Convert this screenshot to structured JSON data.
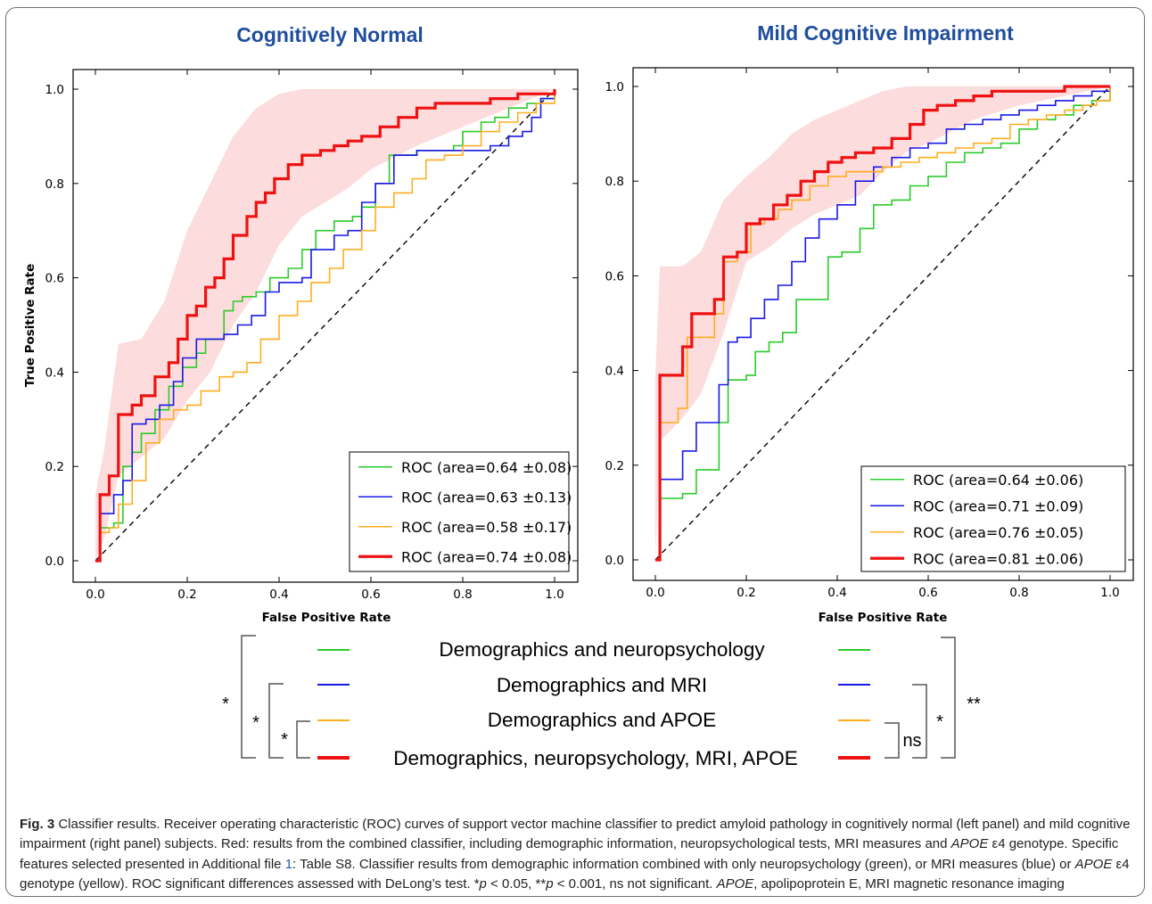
{
  "colors": {
    "green": "#2bcb2b",
    "blue": "#1919e6",
    "orange": "#ffad1f",
    "red": "#ef1111",
    "band": "#fbd0d0",
    "title": "#1f4e9e"
  },
  "chart_data": [
    {
      "type": "line",
      "title": "Cognitively Normal",
      "xlabel": "False Positive Rate",
      "ylabel": "True Positive Rate",
      "xlim": [
        0,
        1
      ],
      "ylim": [
        0,
        1
      ],
      "xticks": [
        "0.0",
        "0.2",
        "0.4",
        "0.6",
        "0.8",
        "1.0"
      ],
      "yticks": [
        "0.0",
        "0.2",
        "0.4",
        "0.6",
        "0.8",
        "1.0"
      ],
      "legend_position": "lower-right",
      "diagonal": "dashed",
      "series": [
        {
          "name": "ROC (area=0.64 ±0.08)",
          "color": "green",
          "x": [
            0,
            0.01,
            0.04,
            0.06,
            0.08,
            0.1,
            0.13,
            0.16,
            0.19,
            0.22,
            0.24,
            0.28,
            0.3,
            0.32,
            0.35,
            0.38,
            0.42,
            0.45,
            0.48,
            0.52,
            0.56,
            0.58,
            0.61,
            0.64,
            0.67,
            0.7,
            0.74,
            0.78,
            0.8,
            0.84,
            0.87,
            0.9,
            0.94,
            0.97,
            1.0
          ],
          "y": [
            0,
            0.07,
            0.08,
            0.2,
            0.23,
            0.27,
            0.32,
            0.37,
            0.41,
            0.44,
            0.47,
            0.53,
            0.55,
            0.56,
            0.57,
            0.6,
            0.62,
            0.66,
            0.7,
            0.72,
            0.73,
            0.75,
            0.8,
            0.86,
            0.86,
            0.87,
            0.87,
            0.88,
            0.91,
            0.93,
            0.94,
            0.96,
            0.97,
            0.98,
            1.0
          ]
        },
        {
          "name": "ROC (area=0.63 ±0.13)",
          "color": "blue",
          "x": [
            0,
            0.01,
            0.04,
            0.06,
            0.08,
            0.11,
            0.14,
            0.17,
            0.19,
            0.22,
            0.25,
            0.28,
            0.31,
            0.34,
            0.37,
            0.4,
            0.45,
            0.47,
            0.52,
            0.55,
            0.58,
            0.61,
            0.65,
            0.7,
            0.78,
            0.82,
            0.86,
            0.9,
            0.93,
            0.95,
            0.97,
            1.0
          ],
          "y": [
            0,
            0.1,
            0.14,
            0.17,
            0.29,
            0.3,
            0.33,
            0.38,
            0.43,
            0.47,
            0.47,
            0.48,
            0.5,
            0.52,
            0.57,
            0.59,
            0.6,
            0.66,
            0.69,
            0.7,
            0.76,
            0.8,
            0.86,
            0.87,
            0.87,
            0.87,
            0.88,
            0.9,
            0.91,
            0.94,
            0.98,
            1.0
          ]
        },
        {
          "name": "ROC (area=0.58 ±0.17)",
          "color": "orange",
          "x": [
            0,
            0.01,
            0.03,
            0.05,
            0.08,
            0.11,
            0.14,
            0.17,
            0.2,
            0.23,
            0.27,
            0.3,
            0.33,
            0.36,
            0.4,
            0.44,
            0.47,
            0.51,
            0.54,
            0.58,
            0.61,
            0.65,
            0.69,
            0.72,
            0.76,
            0.8,
            0.84,
            0.88,
            0.92,
            0.96,
            1.0
          ],
          "y": [
            0,
            0.06,
            0.07,
            0.12,
            0.17,
            0.25,
            0.3,
            0.32,
            0.33,
            0.36,
            0.39,
            0.4,
            0.42,
            0.47,
            0.52,
            0.55,
            0.59,
            0.62,
            0.66,
            0.7,
            0.75,
            0.78,
            0.81,
            0.85,
            0.86,
            0.88,
            0.91,
            0.93,
            0.95,
            0.97,
            1.0
          ]
        },
        {
          "name": "ROC (area=0.74 ±0.08)",
          "color": "red",
          "x": [
            0,
            0.01,
            0.03,
            0.05,
            0.08,
            0.1,
            0.13,
            0.16,
            0.18,
            0.2,
            0.22,
            0.24,
            0.26,
            0.28,
            0.3,
            0.33,
            0.35,
            0.37,
            0.39,
            0.42,
            0.45,
            0.49,
            0.52,
            0.55,
            0.58,
            0.62,
            0.66,
            0.7,
            0.74,
            0.78,
            0.82,
            0.86,
            0.89,
            0.92,
            0.95,
            0.98,
            1.0
          ],
          "y": [
            0,
            0.14,
            0.18,
            0.31,
            0.33,
            0.35,
            0.39,
            0.42,
            0.47,
            0.52,
            0.54,
            0.58,
            0.6,
            0.64,
            0.69,
            0.73,
            0.76,
            0.78,
            0.81,
            0.84,
            0.86,
            0.87,
            0.88,
            0.89,
            0.9,
            0.92,
            0.94,
            0.96,
            0.97,
            0.97,
            0.97,
            0.98,
            0.98,
            0.99,
            0.99,
            0.99,
            1.0
          ]
        }
      ],
      "band": {
        "series": "red",
        "x": [
          0,
          0.02,
          0.05,
          0.1,
          0.15,
          0.2,
          0.25,
          0.3,
          0.35,
          0.4,
          0.45,
          0.5,
          0.55,
          0.6,
          0.7,
          0.8,
          0.9,
          1.0
        ],
        "upper": [
          0.14,
          0.24,
          0.46,
          0.47,
          0.55,
          0.7,
          0.8,
          0.9,
          0.96,
          0.99,
          1.0,
          1.0,
          1.0,
          1.0,
          1.0,
          1.0,
          1.0,
          1.0
        ],
        "lower": [
          0.0,
          0.05,
          0.18,
          0.22,
          0.26,
          0.34,
          0.4,
          0.5,
          0.57,
          0.67,
          0.73,
          0.76,
          0.79,
          0.83,
          0.88,
          0.92,
          0.96,
          1.0
        ]
      }
    },
    {
      "type": "line",
      "title": "Mild Cognitive Impairment",
      "xlabel": "False Positive Rate",
      "ylabel": "",
      "xlim": [
        0,
        1
      ],
      "ylim": [
        0,
        1
      ],
      "xticks": [
        "0.0",
        "0.2",
        "0.4",
        "0.6",
        "0.8",
        "1.0"
      ],
      "yticks": [
        "0.0",
        "0.2",
        "0.4",
        "0.6",
        "0.8",
        "1.0"
      ],
      "legend_position": "lower-right",
      "diagonal": "dashed",
      "series": [
        {
          "name": "ROC (area=0.64 ±0.06)",
          "color": "green",
          "x": [
            0,
            0.01,
            0.03,
            0.06,
            0.09,
            0.12,
            0.14,
            0.16,
            0.2,
            0.22,
            0.25,
            0.28,
            0.31,
            0.35,
            0.38,
            0.41,
            0.45,
            0.48,
            0.52,
            0.56,
            0.6,
            0.64,
            0.68,
            0.72,
            0.76,
            0.8,
            0.84,
            0.88,
            0.92,
            0.96,
            1.0
          ],
          "y": [
            0,
            0.13,
            0.13,
            0.14,
            0.19,
            0.19,
            0.29,
            0.38,
            0.39,
            0.44,
            0.46,
            0.48,
            0.55,
            0.55,
            0.64,
            0.65,
            0.7,
            0.75,
            0.76,
            0.79,
            0.81,
            0.84,
            0.86,
            0.87,
            0.88,
            0.91,
            0.93,
            0.94,
            0.96,
            0.97,
            1.0
          ]
        },
        {
          "name": "ROC (area=0.71 ±0.09)",
          "color": "blue",
          "x": [
            0,
            0.01,
            0.03,
            0.06,
            0.09,
            0.11,
            0.14,
            0.16,
            0.18,
            0.21,
            0.24,
            0.27,
            0.3,
            0.33,
            0.36,
            0.4,
            0.44,
            0.48,
            0.52,
            0.56,
            0.6,
            0.64,
            0.68,
            0.72,
            0.76,
            0.8,
            0.84,
            0.88,
            0.92,
            0.96,
            1.0
          ],
          "y": [
            0,
            0.17,
            0.17,
            0.23,
            0.29,
            0.29,
            0.37,
            0.46,
            0.47,
            0.51,
            0.55,
            0.58,
            0.63,
            0.68,
            0.72,
            0.75,
            0.8,
            0.83,
            0.85,
            0.87,
            0.88,
            0.91,
            0.92,
            0.93,
            0.94,
            0.95,
            0.96,
            0.97,
            0.98,
            0.99,
            1.0
          ]
        },
        {
          "name": "ROC (area=0.76 ±0.05)",
          "color": "orange",
          "x": [
            0,
            0.01,
            0.03,
            0.05,
            0.07,
            0.1,
            0.13,
            0.15,
            0.18,
            0.21,
            0.24,
            0.27,
            0.3,
            0.34,
            0.38,
            0.42,
            0.46,
            0.5,
            0.54,
            0.58,
            0.62,
            0.66,
            0.7,
            0.74,
            0.78,
            0.82,
            0.86,
            0.9,
            0.94,
            0.97,
            1.0
          ],
          "y": [
            0,
            0.29,
            0.29,
            0.32,
            0.47,
            0.47,
            0.52,
            0.63,
            0.65,
            0.71,
            0.72,
            0.74,
            0.76,
            0.79,
            0.81,
            0.82,
            0.82,
            0.83,
            0.84,
            0.85,
            0.86,
            0.87,
            0.88,
            0.89,
            0.92,
            0.93,
            0.94,
            0.95,
            0.96,
            0.97,
            1.0
          ]
        },
        {
          "name": "ROC (area=0.81 ±0.06)",
          "color": "red",
          "x": [
            0,
            0.01,
            0.04,
            0.06,
            0.08,
            0.11,
            0.13,
            0.15,
            0.18,
            0.2,
            0.23,
            0.26,
            0.29,
            0.32,
            0.35,
            0.38,
            0.41,
            0.44,
            0.48,
            0.52,
            0.56,
            0.59,
            0.62,
            0.66,
            0.7,
            0.74,
            0.78,
            0.82,
            0.86,
            0.9,
            0.94,
            0.97,
            1.0
          ],
          "y": [
            0,
            0.39,
            0.39,
            0.45,
            0.52,
            0.52,
            0.55,
            0.64,
            0.65,
            0.71,
            0.72,
            0.75,
            0.77,
            0.8,
            0.82,
            0.84,
            0.85,
            0.86,
            0.87,
            0.89,
            0.92,
            0.95,
            0.96,
            0.97,
            0.98,
            0.99,
            0.99,
            0.99,
            0.99,
            1.0,
            1.0,
            1.0,
            1.0
          ]
        }
      ],
      "band": {
        "series": "red",
        "x": [
          0,
          0.01,
          0.06,
          0.1,
          0.15,
          0.2,
          0.25,
          0.3,
          0.35,
          0.4,
          0.45,
          0.5,
          0.55,
          0.6,
          0.7,
          0.8,
          0.9,
          1.0
        ],
        "upper": [
          0.39,
          0.62,
          0.62,
          0.65,
          0.76,
          0.81,
          0.85,
          0.9,
          0.93,
          0.95,
          0.97,
          0.99,
          1.0,
          1.0,
          1.0,
          1.0,
          1.0,
          1.0
        ],
        "lower": [
          0.0,
          0.25,
          0.3,
          0.35,
          0.48,
          0.63,
          0.66,
          0.7,
          0.73,
          0.75,
          0.77,
          0.82,
          0.86,
          0.88,
          0.93,
          0.96,
          0.98,
          1.0
        ]
      }
    }
  ],
  "legend": {
    "items": [
      {
        "label": "Demographics and neuropsychology",
        "color": "green"
      },
      {
        "label": "Demographics and MRI",
        "color": "blue"
      },
      {
        "label": "Demographics and APOE",
        "color": "orange"
      },
      {
        "label": "Demographics, neuropsychology, MRI, APOE",
        "color": "red"
      }
    ],
    "left_significance": [
      "*",
      "*",
      "*"
    ],
    "right_significance": [
      "ns",
      "*",
      "**"
    ]
  },
  "caption": {
    "label": "Fig. 3",
    "s1": " Classifier results. Receiver operating characteristic (ROC) curves of support vector machine classifier to predict amyloid pathology in cognitively normal (left panel) and mild cognitive impairment (right panel) subjects. Red: results from the combined classifier, including demographic information, neuropsychological tests, MRI measures and ",
    "apoe1": "APOE",
    "s2": " ε4 genotype. Specific features selected presented in Additional file ",
    "link": "1",
    "s3": ": Table S8. Classifier results from demographic information combined with only neuropsychology (green), or MRI measures (blue) or ",
    "apoe2": "APOE",
    "s4": " ε4 genotype (yellow). ROC significant differences assessed with DeLong’s test. *",
    "p1": "p",
    "s5": " < 0.05, **",
    "p2": "p",
    "s6": " < 0.001, ns not significant. ",
    "apoe3": "APOE",
    "s7": ", apolipoprotein E, MRI magnetic resonance imaging"
  }
}
